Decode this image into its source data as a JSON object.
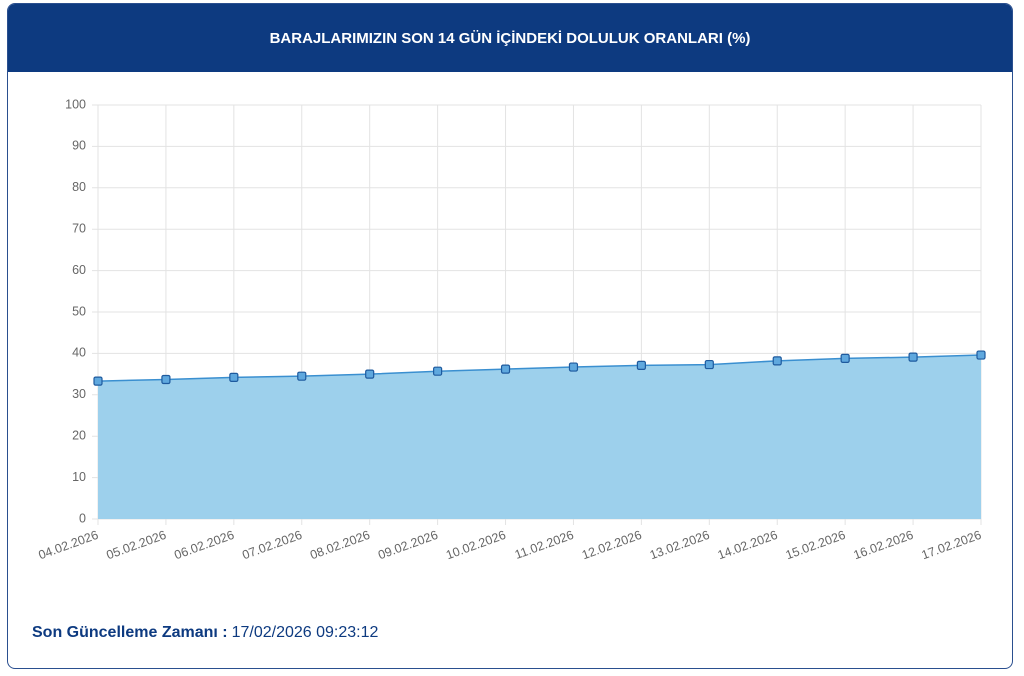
{
  "chart_data": {
    "type": "area",
    "title": "BARAJLARIMIZIN SON 14 GÜN İÇİNDEKİ DOLULUK ORANLARI (%)",
    "categories": [
      "04.02.2026",
      "05.02.2026",
      "06.02.2026",
      "07.02.2026",
      "08.02.2026",
      "09.02.2026",
      "10.02.2026",
      "11.02.2026",
      "12.02.2026",
      "13.02.2026",
      "14.02.2026",
      "15.02.2026",
      "16.02.2026",
      "17.02.2026"
    ],
    "values": [
      33.3,
      33.7,
      34.2,
      34.5,
      35.0,
      35.7,
      36.2,
      36.7,
      37.1,
      37.3,
      38.2,
      38.8,
      39.1,
      39.6
    ],
    "color": "#3a8fd0",
    "fill_color": "#9dd0ec",
    "ylim": [
      0,
      100
    ],
    "yticks": [
      0,
      10,
      20,
      30,
      40,
      50,
      60,
      70,
      80,
      90,
      100
    ],
    "grid": true
  },
  "footer": {
    "label": "Son Güncelleme Zamanı :",
    "value": "17/02/2026 09:23:12"
  }
}
